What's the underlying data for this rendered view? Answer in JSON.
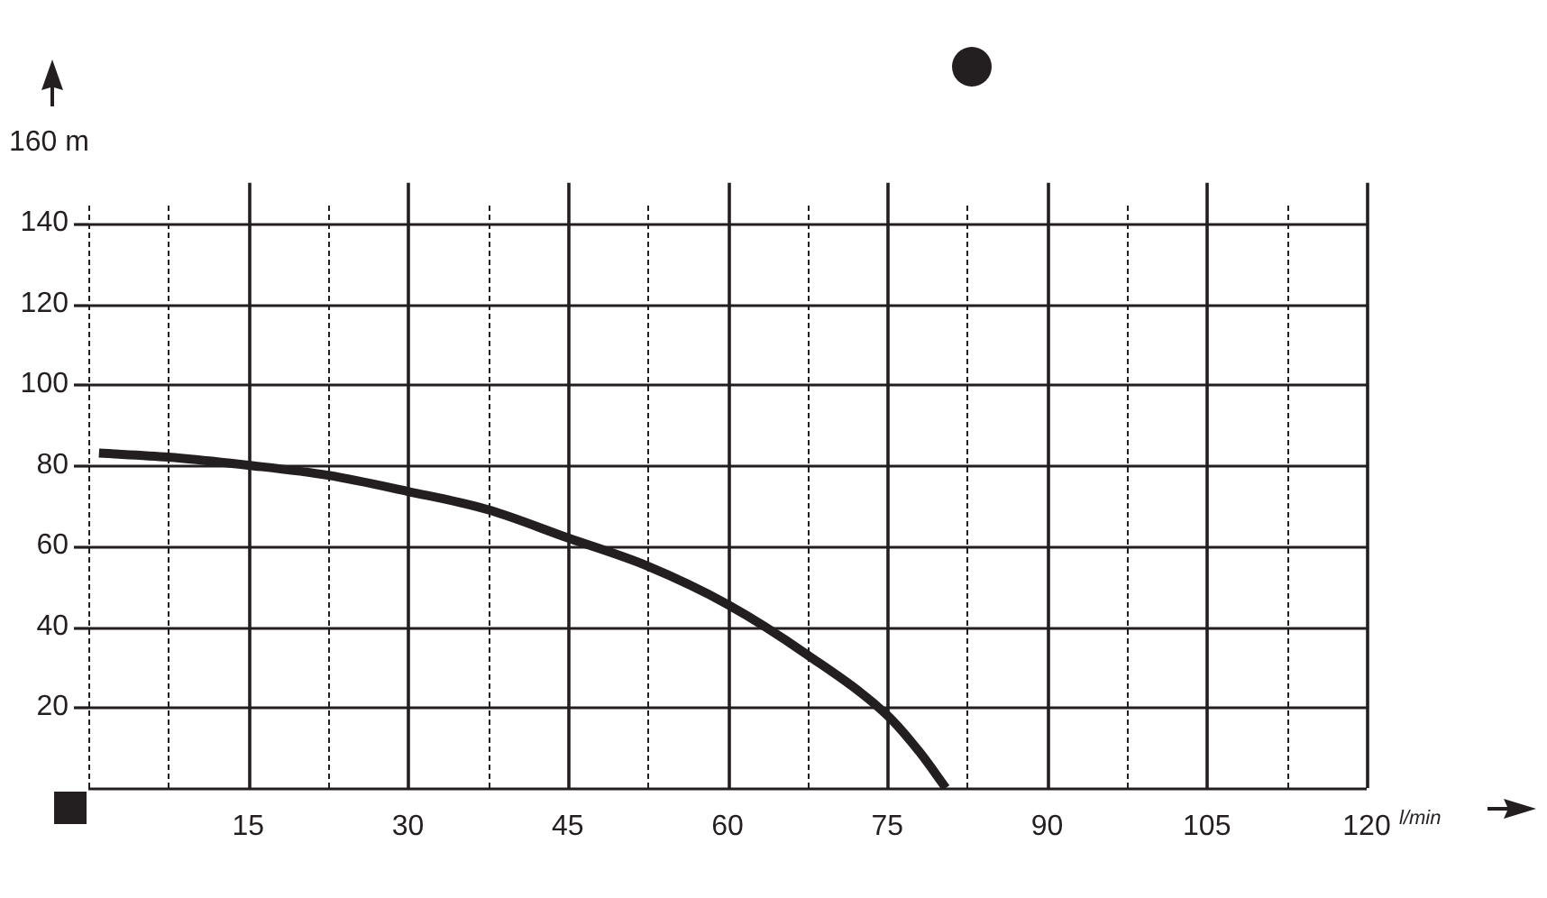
{
  "chart_data": {
    "type": "line",
    "xlabel": "l/min",
    "x": [
      1,
      7.5,
      15,
      22.5,
      30,
      37.5,
      45,
      52.5,
      60,
      67.5,
      75,
      78,
      80.5
    ],
    "series": [
      {
        "color": "#231f20",
        "values": [
          83,
          82,
          80,
          77.5,
          73.5,
          69,
          62,
          55,
          45.5,
          33,
          18,
          9,
          0
        ]
      }
    ],
    "xlim": [
      0,
      120
    ],
    "ylim": [
      0,
      160
    ],
    "xticks": [
      {
        "value": 0,
        "label": null
      },
      {
        "value": 7.5,
        "label": null
      },
      15,
      {
        "value": 22.5,
        "label": null
      },
      30,
      {
        "value": 37.5,
        "label": null
      },
      45,
      {
        "value": 52.5,
        "label": null
      },
      60,
      {
        "value": 67.5,
        "label": null
      },
      75,
      {
        "value": 82.5,
        "label": null
      },
      90,
      {
        "value": 97.5,
        "label": null
      },
      105,
      {
        "value": 112.5,
        "label": null
      },
      120
    ],
    "yticks": [
      {
        "value": 0,
        "label": null
      },
      20,
      40,
      60,
      80,
      100,
      120,
      140,
      {
        "value": 160,
        "label": "160 m"
      }
    ],
    "grid": true,
    "marker": "none",
    "line_style": "solid"
  }
}
